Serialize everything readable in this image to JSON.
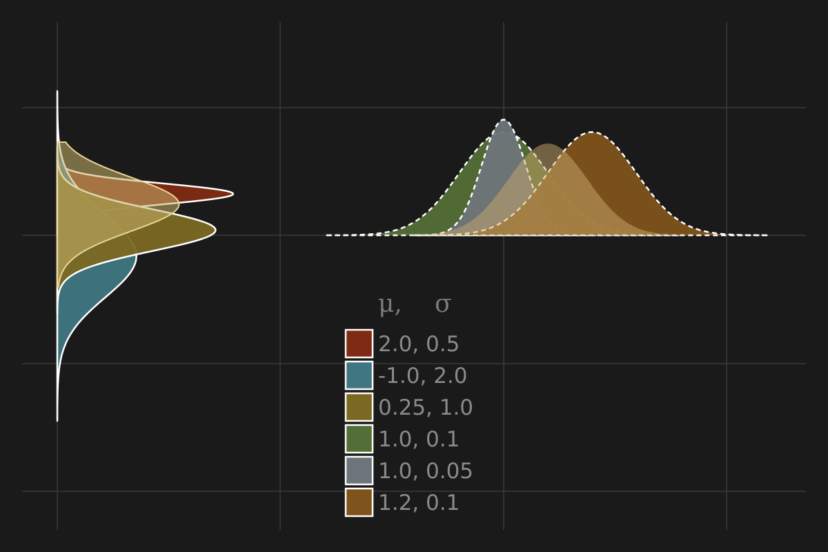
{
  "chart_data": {
    "type": "area",
    "title": "",
    "xlabel": "",
    "ylabel": "",
    "grid": true,
    "legend_placement": "bottom-center",
    "legend_title_mu": "μ,",
    "legend_title_sigma": "σ",
    "series": [
      {
        "label": "2.0,  0.5",
        "mu": 2.0,
        "sigma": 0.5,
        "color": "#7f2a12",
        "orientation": "horizontal",
        "line": "solid"
      },
      {
        "label": "-1.0,  2.0",
        "mu": -1.0,
        "sigma": 2.0,
        "color": "#3f7681",
        "orientation": "horizontal",
        "line": "solid"
      },
      {
        "label": "0.25,  1.0",
        "mu": 0.25,
        "sigma": 1.0,
        "color": "#7b6823",
        "orientation": "horizontal",
        "line": "solid"
      },
      {
        "label": "1.0,  0.1",
        "mu": 1.0,
        "sigma": 0.1,
        "color": "#546e37",
        "orientation": "vertical",
        "line": "dashed"
      },
      {
        "label": "1.0,  0.05",
        "mu": 1.0,
        "sigma": 0.05,
        "color": "#6e757a",
        "orientation": "vertical",
        "line": "dashed"
      },
      {
        "label": "1.2,  0.1",
        "mu": 1.2,
        "sigma": 0.1,
        "color": "#7e531c",
        "orientation": "vertical",
        "line": "dashed"
      }
    ],
    "horizontal_density_overlay": {
      "color": "#c8b36a",
      "mu": 1.5,
      "sigma": 1.3
    },
    "vertical_density_overlay": {
      "color": "#c9a86a",
      "mu": 1.1,
      "sigma": 0.09
    }
  }
}
